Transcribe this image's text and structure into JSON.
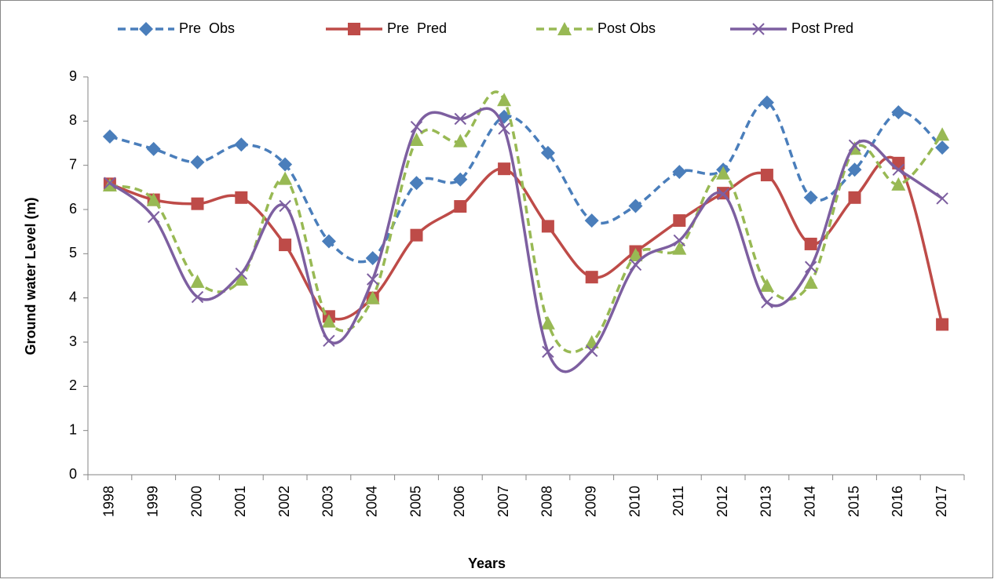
{
  "chart_data": {
    "type": "line",
    "x_label": "Years",
    "y_label": "Ground water Level  (m)",
    "categories": [
      "1998",
      "1999",
      "2000",
      "2001",
      "2002",
      "2003",
      "2004",
      "2005",
      "2006",
      "2007",
      "2008",
      "2009",
      "2010",
      "2011",
      "2012",
      "2013",
      "2014",
      "2015",
      "2016",
      "2017"
    ],
    "ylim": [
      0,
      9
    ],
    "yticks": [
      0,
      1,
      2,
      3,
      4,
      5,
      6,
      7,
      8,
      9
    ],
    "smooth": true,
    "legend": "top",
    "series": [
      {
        "name": "Pre  Obs",
        "color": "#4a7ebb",
        "dash": true,
        "marker": "diamond",
        "values": [
          7.65,
          7.37,
          7.07,
          7.47,
          7.02,
          5.28,
          4.9,
          6.6,
          6.68,
          8.1,
          7.28,
          5.75,
          6.08,
          6.85,
          6.9,
          8.42,
          6.27,
          6.9,
          8.2,
          7.4
        ]
      },
      {
        "name": "Pre  Pred",
        "color": "#be4b48",
        "dash": false,
        "marker": "square",
        "values": [
          6.58,
          6.22,
          6.13,
          6.27,
          5.2,
          3.58,
          4.0,
          5.42,
          6.07,
          6.92,
          5.62,
          4.47,
          5.05,
          5.75,
          6.37,
          6.78,
          5.22,
          6.27,
          7.05,
          3.4
        ]
      },
      {
        "name": "Post Obs",
        "color": "#98b954",
        "dash": true,
        "marker": "triangle",
        "values": [
          6.55,
          6.22,
          4.37,
          4.42,
          6.7,
          3.47,
          4.0,
          7.58,
          7.55,
          8.48,
          3.43,
          3.0,
          4.97,
          5.12,
          6.82,
          4.28,
          4.35,
          7.38,
          6.57,
          7.7
        ]
      },
      {
        "name": "Post Pred",
        "color": "#7d5fa0",
        "dash": false,
        "marker": "x",
        "values": [
          6.6,
          5.83,
          4.02,
          4.55,
          6.08,
          3.03,
          4.42,
          7.87,
          8.05,
          7.83,
          2.78,
          2.8,
          4.75,
          5.3,
          6.35,
          3.9,
          4.7,
          7.45,
          6.9,
          6.25
        ]
      }
    ]
  }
}
